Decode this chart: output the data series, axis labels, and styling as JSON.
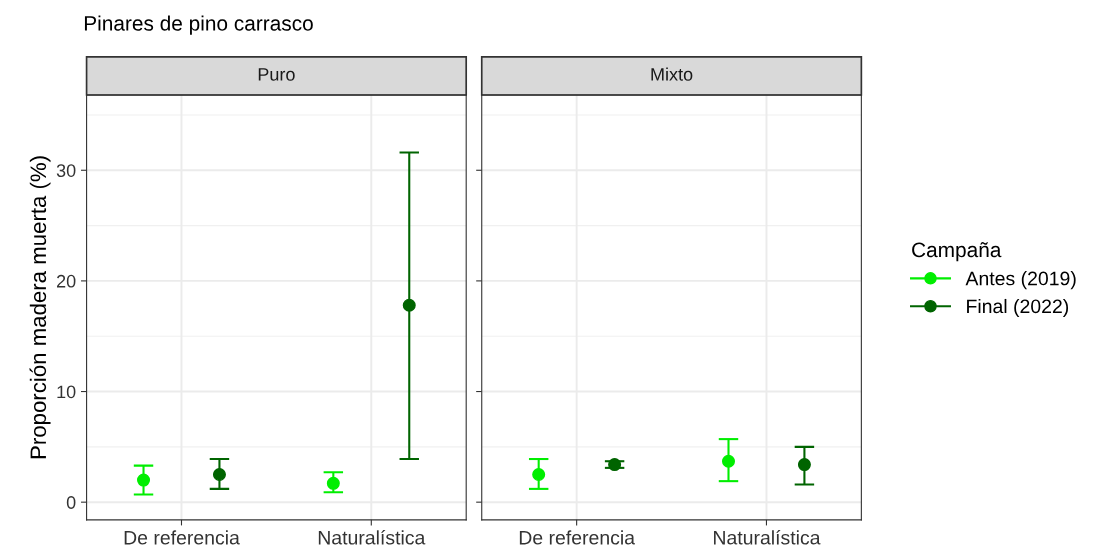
{
  "chart_data": [
    {
      "type": "scatter",
      "title": "Puro",
      "ylabel": "Proporción madera muerta (%)",
      "annotations": [
        "Pinares de pino carrasco"
      ],
      "categories": [
        "De referencia",
        "Naturalística"
      ],
      "ylim": [
        -1.6,
        36.8
      ],
      "yticks": [
        0,
        10,
        20,
        30
      ],
      "grid": true,
      "marker": "circle",
      "legend": "right",
      "legend_title": "Campaña",
      "series": [
        {
          "name": "Antes (2019)",
          "color": "#00ee00",
          "values": [
            2.0,
            1.7
          ],
          "errors": [
            [
              0.7,
              3.3
            ],
            [
              0.9,
              2.7
            ]
          ]
        },
        {
          "name": "Final (2022)",
          "color": "#006400",
          "values": [
            2.5,
            17.8
          ],
          "errors": [
            [
              1.2,
              3.9
            ],
            [
              3.9,
              31.6
            ]
          ]
        }
      ]
    },
    {
      "type": "scatter",
      "title": "Mixto",
      "categories": [
        "De referencia",
        "Naturalística"
      ],
      "ylim": [
        -1.6,
        36.8
      ],
      "yticks": [
        0,
        10,
        20,
        30
      ],
      "tick_labels": "x",
      "grid": true,
      "marker": "circle",
      "series": [
        {
          "color": "#00ee00",
          "values": [
            2.5,
            3.7
          ],
          "errors": [
            [
              1.2,
              3.9
            ],
            [
              1.9,
              5.7
            ]
          ]
        },
        {
          "color": "#006400",
          "values": [
            3.4,
            3.4
          ],
          "errors": [
            [
              3.1,
              3.7
            ],
            [
              1.6,
              5.0
            ]
          ]
        }
      ]
    }
  ]
}
